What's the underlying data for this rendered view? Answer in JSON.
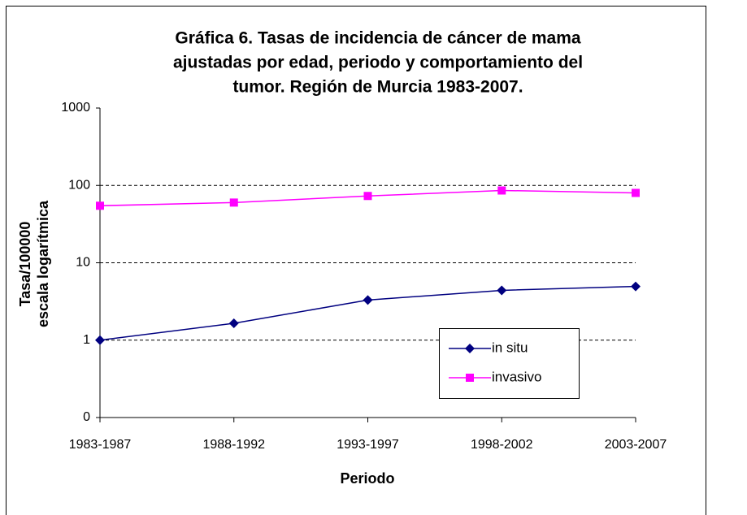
{
  "chart_data": {
    "type": "line",
    "title": [
      "Gráfica 6. Tasas de incidencia de cáncer de mama",
      "ajustadas  por edad, periodo y comportamiento del",
      "tumor. Región de Murcia 1983-2007."
    ],
    "xlabel": "Periodo",
    "ylabel": [
      "Tasa/100000",
      "escala logarítmica"
    ],
    "categories": [
      "1983-1987",
      "1988-1992",
      "1993-1997",
      "1998-2002",
      "2003-2007"
    ],
    "series": [
      {
        "name": "in situ",
        "color": "#000080",
        "marker": "diamond",
        "values": [
          1.0,
          1.65,
          3.3,
          4.4,
          4.95
        ]
      },
      {
        "name": "invasivo",
        "color": "#ff00ff",
        "marker": "square",
        "values": [
          54.6,
          60,
          73,
          86,
          80
        ]
      }
    ],
    "ylim": [
      0.1,
      1000
    ],
    "yticks": [
      {
        "value": 0.1,
        "label": "0"
      },
      1,
      10,
      100,
      1000
    ],
    "log_scale_y": true,
    "grid": true,
    "legend": "lower right"
  }
}
